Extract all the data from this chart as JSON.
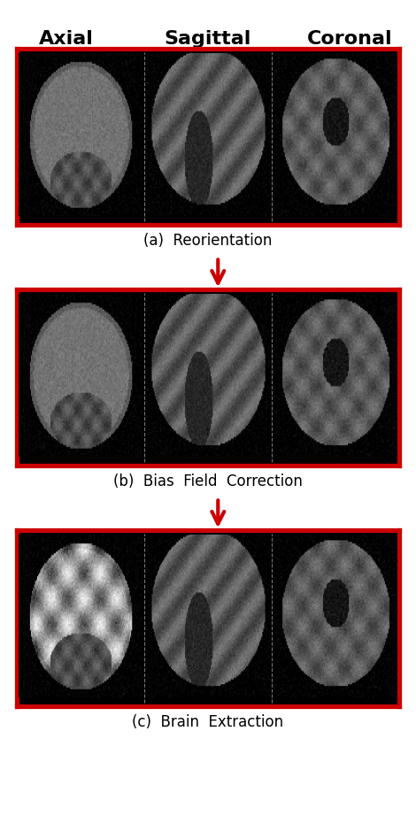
{
  "title_labels": [
    "Axial",
    "Sagittal",
    "Coronal"
  ],
  "title_fontsize": 16,
  "title_fontweight": "bold",
  "row_labels": [
    "(a)  Reorientation",
    "(b)  Bias  Field  Correction",
    "(c)  Brain  Extraction"
  ],
  "row_label_fontsize": 12,
  "border_color": "#cc0000",
  "border_linewidth": 2.5,
  "arrow_color": "#cc0000",
  "background_color": "#000000",
  "dashed_line_color": "#aaaaaa",
  "fig_bg": "#ffffff",
  "figsize": [
    4.7,
    9.22
  ],
  "dpi": 100
}
